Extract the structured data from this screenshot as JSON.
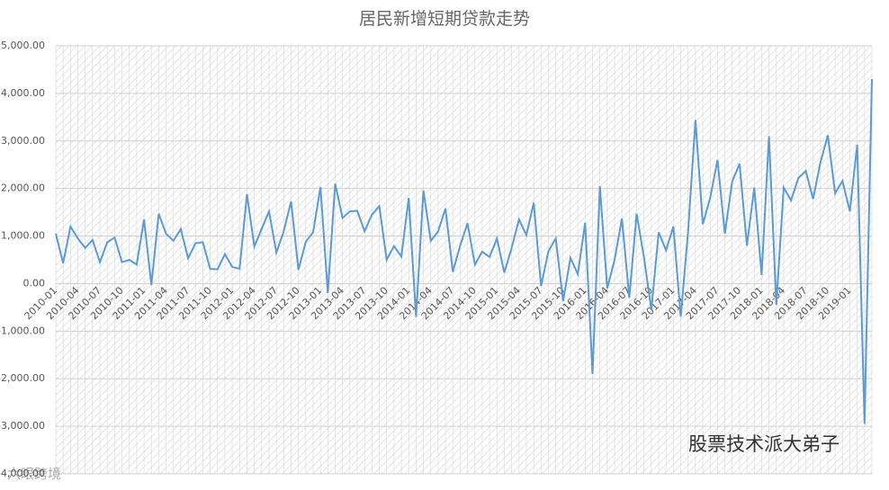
{
  "chart_data": {
    "type": "line",
    "title": "居民新增短期贷款走势",
    "categories": [
      "2010-01",
      null,
      null,
      "2010-04",
      null,
      null,
      "2010-07",
      null,
      null,
      "2010-10",
      null,
      null,
      "2011-01",
      null,
      null,
      "2011-04",
      null,
      null,
      "2011-07",
      null,
      null,
      "2011-10",
      null,
      null,
      "2012-01",
      null,
      null,
      "2012-04",
      null,
      null,
      "2012-07",
      null,
      null,
      "2012-10",
      null,
      null,
      "2013-01",
      null,
      null,
      "2013-04",
      null,
      null,
      "2013-07",
      null,
      null,
      "2013-10",
      null,
      null,
      "2014-01",
      null,
      null,
      "2014-04",
      null,
      null,
      "2014-07",
      null,
      null,
      "2014-10",
      null,
      null,
      "2015-01",
      null,
      null,
      "2015-04",
      null,
      null,
      "2015-07",
      null,
      null,
      "2015-10",
      null,
      null,
      "2016-01",
      null,
      null,
      "2016-04",
      null,
      null,
      "2016-07",
      null,
      null,
      "2016-10",
      null,
      null,
      "2017-01",
      null,
      null,
      "2017-04",
      null,
      null,
      "2017-07",
      null,
      null,
      "2017-10",
      null,
      null,
      "2018-01",
      null,
      null,
      "2018-04",
      null,
      null,
      "2018-07",
      null,
      null,
      "2018-10",
      null,
      null,
      "2019-01",
      null,
      null,
      null
    ],
    "series": [
      {
        "name": "居民新增短期贷款",
        "color": "#5b9bd5",
        "values": [
          1050,
          430,
          1200,
          950,
          750,
          920,
          450,
          870,
          970,
          450,
          500,
          400,
          1350,
          -30,
          1470,
          1050,
          900,
          1150,
          530,
          850,
          870,
          310,
          300,
          620,
          350,
          310,
          1880,
          780,
          1150,
          1520,
          650,
          1100,
          1730,
          290,
          880,
          1080,
          2030,
          -200,
          2100,
          1380,
          1520,
          1530,
          1100,
          1450,
          1630,
          500,
          790,
          570,
          1800,
          -700,
          1960,
          900,
          1100,
          1580,
          250,
          800,
          1270,
          400,
          670,
          560,
          950,
          230,
          750,
          1350,
          1020,
          1700,
          -50,
          680,
          950,
          -370,
          540,
          200,
          1280,
          -1900,
          2050,
          -100,
          500,
          1370,
          -300,
          1470,
          550,
          -550,
          1080,
          700,
          1200,
          -700,
          1100,
          3440,
          1250,
          1800,
          2600,
          1050,
          2150,
          2520,
          800,
          2020,
          180,
          3100,
          -450,
          2020,
          1750,
          2220,
          2370,
          1780,
          2550,
          3120,
          1900,
          2160,
          1520,
          2920,
          -2950,
          4300
        ]
      }
    ],
    "ylim": [
      -4000,
      5000
    ],
    "yticks": [
      {
        "value": -4000,
        "label": "-4,000.00"
      },
      {
        "value": -3000,
        "label": "-3,000.00"
      },
      {
        "value": -2000,
        "label": "-2,000.00"
      },
      {
        "value": -1000,
        "label": "-1,000.00"
      },
      {
        "value": 0,
        "label": "0.00"
      },
      {
        "value": 1000,
        "label": "1,000.00"
      },
      {
        "value": 2000,
        "label": "2,000.00"
      },
      {
        "value": 3000,
        "label": "3,000.00"
      },
      {
        "value": 4000,
        "label": "4,000.00"
      },
      {
        "value": 5000,
        "label": "5,000.00"
      }
    ],
    "grid": true,
    "watermarks": [
      "股票技术派大弟子",
      "六眼跨境"
    ]
  }
}
